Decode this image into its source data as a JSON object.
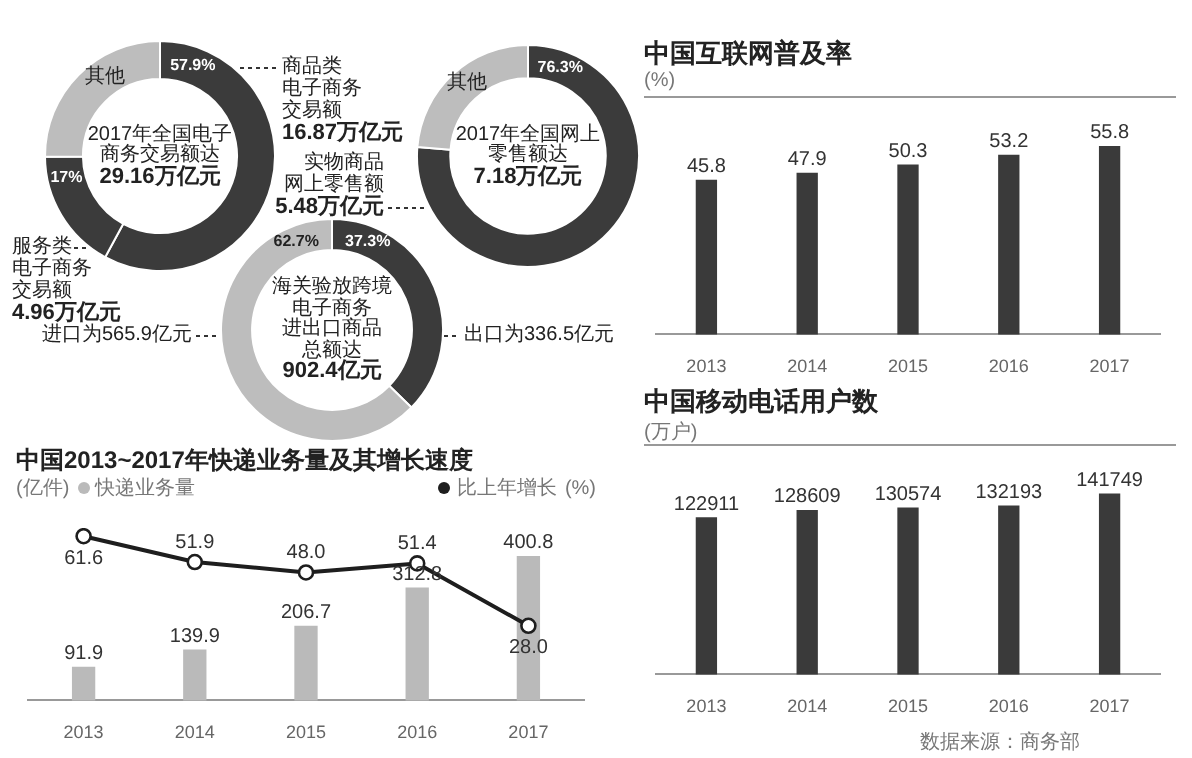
{
  "chart_data": [
    {
      "type": "donut",
      "title": "2017年全国电子商务交易额达29.16万亿元",
      "categories": [
        "商品类电子商务交易额",
        "服务类电子商务交易额",
        "其他"
      ],
      "values": [
        57.9,
        17,
        25.1
      ],
      "colors": [
        "#3b3b3b",
        "#3b3b3b",
        "#bdbdbd"
      ],
      "value_labels": [
        "57.9%",
        "17%",
        null
      ],
      "annotations": [
        "16.87万亿元",
        "4.96万亿元"
      ]
    },
    {
      "type": "donut",
      "title": "2017年全国网上零售额达7.18万亿元",
      "categories": [
        "实物商品网上零售额",
        "其他"
      ],
      "values": [
        76.3,
        23.7
      ],
      "colors": [
        "#3b3b3b",
        "#bdbdbd"
      ],
      "value_labels": [
        "76.3%",
        null
      ],
      "annotations": [
        "5.48万亿元"
      ]
    },
    {
      "type": "donut",
      "title": "海关验放跨境电子商务进出口商品总额达902.4亿元",
      "categories": [
        "出口为336.5亿元",
        "进口为565.9亿元"
      ],
      "values": [
        37.3,
        62.7
      ],
      "colors": [
        "#3b3b3b",
        "#bdbdbd"
      ],
      "value_labels": [
        "37.3%",
        "62.7%"
      ]
    },
    {
      "type": "bar",
      "title": "中国2013~2017年快递业务量及其增长速度",
      "ylabel": "(亿件)",
      "y2label": "(%)",
      "categories": [
        "2013",
        "2014",
        "2015",
        "2016",
        "2017"
      ],
      "series": [
        {
          "name": "快递业务量",
          "type": "bar",
          "color": "#bababa",
          "values": [
            91.9,
            139.9,
            206.7,
            312.8,
            400.8
          ],
          "value_labels": [
            "91.9",
            "139.9",
            "206.7",
            "312.8",
            "400.8"
          ]
        },
        {
          "name": "比上年增长",
          "type": "line",
          "axis": "y2",
          "color": "#1e1e1e",
          "values": [
            61.6,
            51.9,
            48.0,
            51.4,
            28.0
          ],
          "value_labels": [
            "61.6",
            "51.9",
            "48.0",
            "51.4",
            "28.0"
          ]
        }
      ],
      "legend": "top",
      "marker": "circle",
      "tick_labels": "x"
    },
    {
      "type": "bar",
      "title": "中国互联网普及率",
      "ylabel": "(%)",
      "categories": [
        "2013",
        "2014",
        "2015",
        "2016",
        "2017"
      ],
      "values": [
        45.8,
        47.9,
        50.3,
        53.2,
        55.8
      ],
      "color": "#3a3a3a",
      "data_labels": true,
      "tick_labels": "x"
    },
    {
      "type": "bar",
      "title": "中国移动电话用户数",
      "ylabel": "(万户)",
      "categories": [
        "2013",
        "2014",
        "2015",
        "2016",
        "2017"
      ],
      "values": [
        122911,
        128609,
        130574,
        132193,
        141749
      ],
      "color": "#3a3a3a",
      "data_labels": true,
      "tick_labels": "x",
      "annotations": [
        "数据来源：商务部"
      ]
    }
  ]
}
